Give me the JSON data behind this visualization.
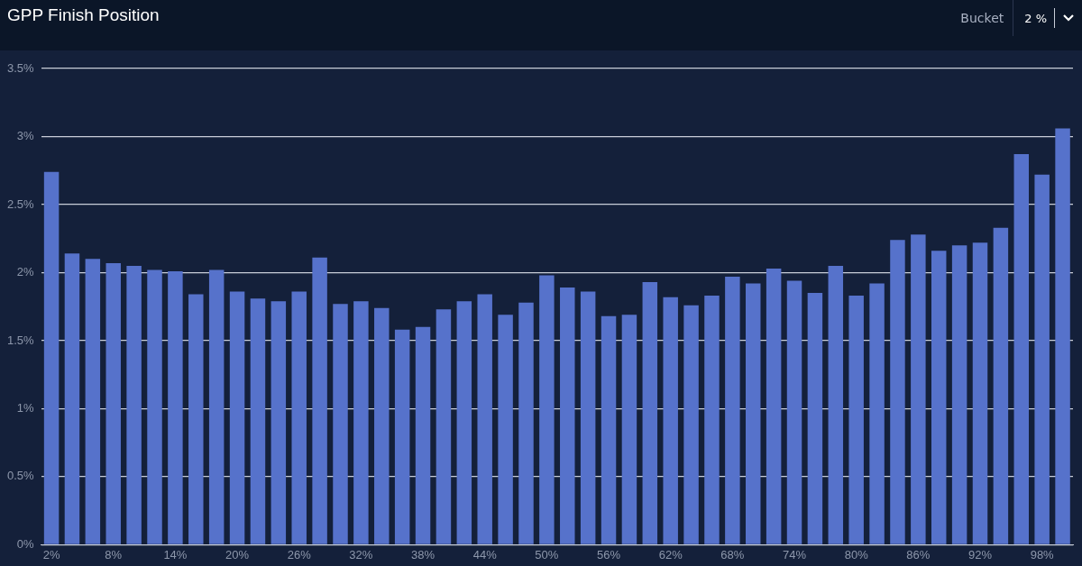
{
  "chart_data": {
    "type": "bar",
    "title": "GPP Finish Position",
    "annotations": [
      "Bucket",
      "2 %"
    ],
    "categories": [
      "2%",
      null,
      null,
      "8%",
      null,
      null,
      "14%",
      null,
      null,
      "20%",
      null,
      null,
      "26%",
      null,
      null,
      "32%",
      null,
      null,
      "38%",
      null,
      null,
      "44%",
      null,
      null,
      "50%",
      null,
      null,
      "56%",
      null,
      null,
      "62%",
      null,
      null,
      "68%",
      null,
      null,
      "74%",
      null,
      null,
      "80%",
      null,
      null,
      "86%",
      null,
      null,
      "92%",
      null,
      null,
      "98%",
      null
    ],
    "values": [
      2.74,
      2.14,
      2.1,
      2.07,
      2.05,
      2.02,
      2.01,
      1.84,
      2.02,
      1.86,
      1.81,
      1.79,
      1.86,
      2.11,
      1.77,
      1.79,
      1.74,
      1.58,
      1.6,
      1.73,
      1.79,
      1.84,
      1.69,
      1.78,
      1.98,
      1.89,
      1.86,
      1.68,
      1.69,
      1.93,
      1.82,
      1.76,
      1.83,
      1.97,
      1.92,
      2.03,
      1.94,
      1.85,
      2.05,
      1.83,
      1.92,
      2.24,
      2.28,
      2.16,
      2.2,
      2.22,
      2.33,
      2.87,
      2.72,
      3.06
    ],
    "color": "#5672cb",
    "ylim": [
      0,
      3.5
    ],
    "yticks": [
      {
        "value": 0,
        "label": "0%"
      },
      {
        "value": 0.5,
        "label": "0.5%"
      },
      {
        "value": 1,
        "label": "1%"
      },
      {
        "value": 1.5,
        "label": "1.5%"
      },
      {
        "value": 2,
        "label": "2%"
      },
      {
        "value": 2.5,
        "label": "2.5%"
      },
      {
        "value": 3,
        "label": "3%"
      },
      {
        "value": 3.5,
        "label": "3.5%"
      }
    ],
    "grid": "y",
    "legend": false
  }
}
